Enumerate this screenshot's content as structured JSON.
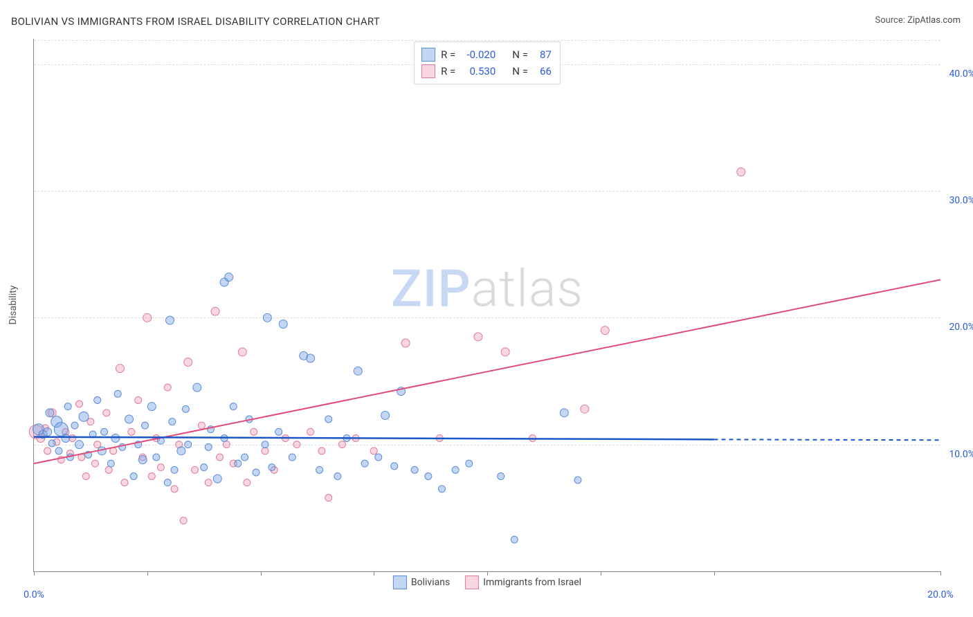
{
  "title": "BOLIVIAN VS IMMIGRANTS FROM ISRAEL DISABILITY CORRELATION CHART",
  "source_label": "Source: ",
  "source_name": "ZipAtlas.com",
  "y_axis_title": "Disability",
  "watermark_zip": "ZIP",
  "watermark_atlas": "atlas",
  "xlim": [
    0,
    20
  ],
  "ylim": [
    0,
    42
  ],
  "x_ticks": [
    0,
    2.5,
    5,
    7.5,
    10,
    12.5,
    15,
    20
  ],
  "x_tick_labels": {
    "0": "0.0%",
    "20": "20.0%"
  },
  "y_ticks": [
    10,
    20,
    30,
    40
  ],
  "y_tick_labels": {
    "10": "10.0%",
    "20": "20.0%",
    "30": "30.0%",
    "40": "40.0%"
  },
  "grid_color": "#dcdcdc",
  "background_color": "#ffffff",
  "series": {
    "blue": {
      "label": "Bolivians",
      "fill": "rgba(121,163,228,0.45)",
      "stroke": "#5a8bd8",
      "line_color": "#1a56c9",
      "R": "-0.020",
      "N": "87",
      "trend": {
        "x1": 0,
        "y1": 10.6,
        "x2": 15,
        "y2": 10.4,
        "dash_extend_x": 20,
        "dash_extend_y": 10.35
      },
      "points": [
        [
          0.1,
          11.2,
          8
        ],
        [
          0.2,
          10.8,
          6
        ],
        [
          0.3,
          11.0,
          6
        ],
        [
          0.35,
          12.5,
          6
        ],
        [
          0.4,
          10.1,
          5
        ],
        [
          0.5,
          11.8,
          8
        ],
        [
          0.55,
          9.5,
          5
        ],
        [
          0.6,
          11.2,
          10
        ],
        [
          0.7,
          10.5,
          6
        ],
        [
          0.75,
          13.0,
          5
        ],
        [
          0.8,
          9.0,
          5
        ],
        [
          0.9,
          11.5,
          5
        ],
        [
          1.0,
          10.0,
          6
        ],
        [
          1.1,
          12.2,
          7
        ],
        [
          1.2,
          9.2,
          5
        ],
        [
          1.3,
          10.8,
          5
        ],
        [
          1.4,
          13.5,
          5
        ],
        [
          1.5,
          9.5,
          6
        ],
        [
          1.55,
          11.0,
          5
        ],
        [
          1.7,
          8.5,
          5
        ],
        [
          1.8,
          10.5,
          6
        ],
        [
          1.85,
          14.0,
          5
        ],
        [
          1.95,
          9.8,
          5
        ],
        [
          2.1,
          12.0,
          6
        ],
        [
          2.2,
          7.5,
          5
        ],
        [
          2.3,
          10.0,
          5
        ],
        [
          2.4,
          8.8,
          6
        ],
        [
          2.45,
          11.5,
          5
        ],
        [
          2.6,
          13.0,
          6
        ],
        [
          2.7,
          9.0,
          5
        ],
        [
          2.8,
          10.3,
          5
        ],
        [
          2.95,
          7.0,
          5
        ],
        [
          3.0,
          19.8,
          6
        ],
        [
          3.05,
          11.8,
          5
        ],
        [
          3.1,
          8.0,
          5
        ],
        [
          3.25,
          9.5,
          6
        ],
        [
          3.35,
          12.8,
          5
        ],
        [
          3.4,
          10.0,
          5
        ],
        [
          3.6,
          14.5,
          6
        ],
        [
          3.75,
          8.2,
          5
        ],
        [
          3.85,
          9.8,
          5
        ],
        [
          3.9,
          11.2,
          5
        ],
        [
          4.05,
          7.3,
          6
        ],
        [
          4.2,
          22.8,
          6
        ],
        [
          4.3,
          23.2,
          6
        ],
        [
          4.2,
          10.5,
          5
        ],
        [
          4.4,
          13.0,
          5
        ],
        [
          4.5,
          8.5,
          5
        ],
        [
          4.65,
          9.0,
          5
        ],
        [
          4.75,
          12.0,
          5
        ],
        [
          4.9,
          7.8,
          5
        ],
        [
          5.1,
          10.0,
          5
        ],
        [
          5.15,
          20.0,
          6
        ],
        [
          5.25,
          8.2,
          5
        ],
        [
          5.4,
          11.0,
          5
        ],
        [
          5.5,
          19.5,
          6
        ],
        [
          5.7,
          9.0,
          5
        ],
        [
          5.95,
          17.0,
          6
        ],
        [
          6.1,
          16.8,
          6
        ],
        [
          6.3,
          8.0,
          5
        ],
        [
          6.5,
          12.0,
          5
        ],
        [
          6.7,
          7.5,
          5
        ],
        [
          6.9,
          10.5,
          5
        ],
        [
          7.15,
          15.8,
          6
        ],
        [
          7.3,
          8.5,
          5
        ],
        [
          7.6,
          9.0,
          5
        ],
        [
          7.75,
          12.3,
          6
        ],
        [
          7.95,
          8.3,
          5
        ],
        [
          8.1,
          14.2,
          6
        ],
        [
          8.4,
          8.0,
          5
        ],
        [
          8.7,
          7.5,
          5
        ],
        [
          9.0,
          6.5,
          5
        ],
        [
          9.3,
          8.0,
          5
        ],
        [
          9.6,
          8.5,
          5
        ],
        [
          10.3,
          7.5,
          5
        ],
        [
          10.6,
          2.5,
          5
        ],
        [
          11.7,
          12.5,
          6
        ],
        [
          12.0,
          7.2,
          5
        ]
      ]
    },
    "pink": {
      "label": "Immigrants from Israel",
      "fill": "rgba(239,159,180,0.42)",
      "stroke": "#e07a96",
      "line_color": "#e24a7a",
      "R": "0.530",
      "N": "66",
      "trend": {
        "x1": 0,
        "y1": 8.5,
        "x2": 20,
        "y2": 23.0
      },
      "points": [
        [
          0.05,
          11.0,
          10
        ],
        [
          0.15,
          10.5,
          6
        ],
        [
          0.25,
          11.3,
          5
        ],
        [
          0.3,
          9.5,
          5
        ],
        [
          0.4,
          12.5,
          6
        ],
        [
          0.5,
          10.2,
          5
        ],
        [
          0.6,
          8.8,
          5
        ],
        [
          0.7,
          11.0,
          5
        ],
        [
          0.8,
          9.3,
          5
        ],
        [
          0.85,
          10.5,
          5
        ],
        [
          1.0,
          13.2,
          5
        ],
        [
          1.05,
          9.0,
          5
        ],
        [
          1.15,
          7.5,
          5
        ],
        [
          1.25,
          11.8,
          5
        ],
        [
          1.35,
          8.5,
          5
        ],
        [
          1.4,
          10.0,
          5
        ],
        [
          1.6,
          12.5,
          5
        ],
        [
          1.65,
          8.0,
          5
        ],
        [
          1.75,
          9.5,
          5
        ],
        [
          1.9,
          16.0,
          6
        ],
        [
          2.0,
          7.0,
          5
        ],
        [
          2.15,
          11.0,
          5
        ],
        [
          2.3,
          13.5,
          5
        ],
        [
          2.4,
          9.0,
          5
        ],
        [
          2.5,
          20.0,
          6
        ],
        [
          2.6,
          7.5,
          5
        ],
        [
          2.7,
          10.5,
          5
        ],
        [
          2.8,
          8.2,
          5
        ],
        [
          2.95,
          14.5,
          5
        ],
        [
          3.1,
          6.5,
          5
        ],
        [
          3.2,
          10.0,
          5
        ],
        [
          3.3,
          4.0,
          5
        ],
        [
          3.4,
          16.5,
          6
        ],
        [
          3.55,
          8.0,
          5
        ],
        [
          3.7,
          11.5,
          5
        ],
        [
          3.85,
          7.0,
          5
        ],
        [
          4.0,
          20.5,
          6
        ],
        [
          4.1,
          9.0,
          5
        ],
        [
          4.25,
          10.0,
          5
        ],
        [
          4.4,
          8.5,
          5
        ],
        [
          4.6,
          17.3,
          6
        ],
        [
          4.7,
          7.0,
          5
        ],
        [
          4.85,
          11.0,
          5
        ],
        [
          5.1,
          9.5,
          5
        ],
        [
          5.3,
          8.0,
          5
        ],
        [
          5.55,
          10.5,
          5
        ],
        [
          5.8,
          10.0,
          5
        ],
        [
          6.1,
          11.0,
          5
        ],
        [
          6.35,
          9.5,
          5
        ],
        [
          6.5,
          5.8,
          5
        ],
        [
          6.8,
          10.0,
          5
        ],
        [
          7.1,
          10.5,
          5
        ],
        [
          7.5,
          9.5,
          5
        ],
        [
          8.2,
          18.0,
          6
        ],
        [
          8.95,
          10.5,
          5
        ],
        [
          9.8,
          18.5,
          6
        ],
        [
          10.4,
          17.3,
          6
        ],
        [
          11.0,
          10.5,
          5
        ],
        [
          12.15,
          12.8,
          6
        ],
        [
          12.6,
          19.0,
          6
        ],
        [
          15.6,
          31.5,
          6
        ]
      ]
    }
  },
  "stat_legend_labels": {
    "R": "R =",
    "N": "N ="
  }
}
